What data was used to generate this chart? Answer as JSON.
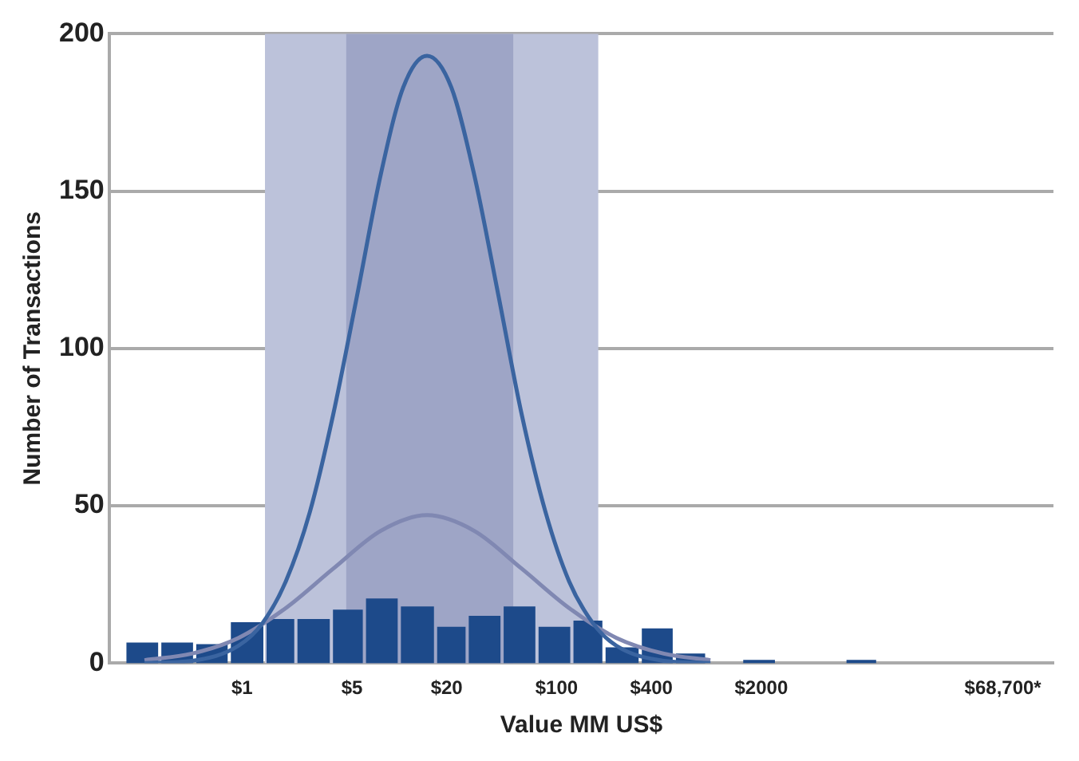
{
  "chart_data": {
    "type": "histogram",
    "xlabel": "Value MM US$",
    "ylabel": "Number of Transactions",
    "bins": [
      0.18,
      0.3,
      0.5,
      0.83,
      1.4,
      2.2,
      3.7,
      6,
      10,
      17,
      27,
      45,
      75,
      125,
      200,
      340,
      560,
      900,
      1500,
      2500,
      6800,
      11000
    ],
    "values": [
      6.5,
      6.5,
      6,
      13,
      14,
      14,
      17,
      20.5,
      18,
      11.5,
      15,
      18,
      11.5,
      13.5,
      5,
      11,
      3,
      0,
      1,
      0,
      1
    ],
    "color": "#1d4a8a",
    "series": [
      {
        "type": "line",
        "color": "#3a64a0",
        "x": [
          0.24,
          0.48,
          0.95,
          1.35,
          1.9,
          2.7,
          3.8,
          5.4,
          7.6,
          10.6,
          15,
          21.4,
          30,
          42.6,
          60,
          85,
          120,
          170,
          240,
          480,
          950
        ],
        "values": [
          0,
          0.7,
          5.5,
          12.7,
          26,
          48,
          79,
          117,
          155,
          183,
          193,
          183,
          155,
          117,
          79,
          48,
          26,
          12.7,
          5.5,
          0.7,
          0
        ]
      },
      {
        "type": "line",
        "color": "#8088b2",
        "x": [
          0.24,
          0.48,
          0.95,
          1.9,
          3.8,
          7.6,
          15,
          30,
          60,
          120,
          240,
          480,
          950
        ],
        "values": [
          0.9,
          3,
          8,
          17.5,
          30,
          42,
          47,
          42,
          30,
          17.5,
          8,
          3,
          0.9
        ]
      }
    ],
    "log": "x",
    "xlim": [
      0.143,
      144000
    ],
    "xticks": [
      {
        "value": 1,
        "label": "$1"
      },
      {
        "value": 5,
        "label": "$5"
      },
      {
        "value": 20,
        "label": "$20"
      },
      {
        "value": 100,
        "label": "$100"
      },
      {
        "value": 400,
        "label": "$400"
      },
      {
        "value": 2000,
        "label": "$2000"
      },
      {
        "value": 68700,
        "label": "$68,700*"
      }
    ],
    "ylim": [
      0,
      200
    ],
    "yticks": [
      0,
      50,
      100,
      150,
      200
    ],
    "grid": "y",
    "bands": [
      {
        "axis": "x",
        "from": 1.4,
        "to": 184,
        "color": "#bcc2da"
      },
      {
        "axis": "x",
        "from": 4.6,
        "to": 53,
        "color": "#9ea5c6"
      }
    ]
  }
}
